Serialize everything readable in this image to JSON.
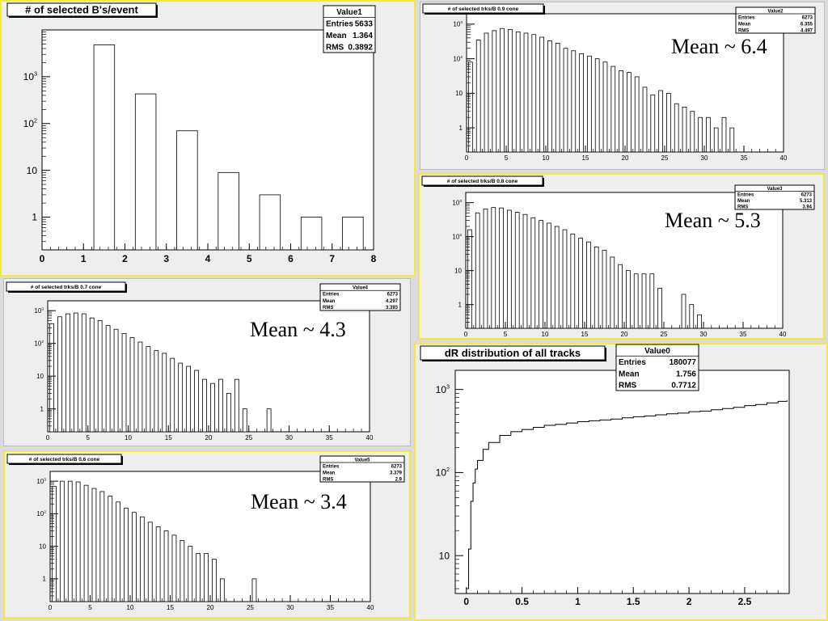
{
  "chart_data": [
    {
      "id": "p1",
      "type": "bar",
      "title": "# of selected B's/event",
      "stats": {
        "name": "Value1",
        "entries": "5633",
        "mean": "1.364",
        "rms": "0.3892"
      },
      "annotation": "",
      "log_y": true,
      "xlim": [
        0,
        8
      ],
      "ylim": [
        0.2,
        10000
      ],
      "bin_width": 1,
      "x_ticks": [
        "0",
        "1",
        "2",
        "3",
        "4",
        "5",
        "6",
        "7",
        "8"
      ],
      "y_ticks": [
        "1",
        "10",
        "10^2",
        "10^3"
      ],
      "x": [
        1,
        2,
        3,
        4,
        5,
        6,
        7
      ],
      "values": [
        4800,
        430,
        70,
        9,
        3,
        1,
        1
      ]
    },
    {
      "id": "p2",
      "type": "bar",
      "title": "# of selected trks/B 0.9 cone",
      "stats": {
        "name": "Value2",
        "entries": "6273",
        "mean": "6.355",
        "rms": "4.497"
      },
      "annotation": "Mean ~ 6.4",
      "log_y": true,
      "xlim": [
        0,
        40
      ],
      "ylim": [
        0.2,
        2000
      ],
      "bin_width": 1,
      "x_ticks": [
        "0",
        "5",
        "10",
        "15",
        "20",
        "25",
        "30",
        "35",
        "40"
      ],
      "y_ticks": [
        "1",
        "10",
        "10^2",
        "10^3"
      ],
      "x": [
        0,
        1,
        2,
        3,
        4,
        5,
        6,
        7,
        8,
        9,
        10,
        11,
        12,
        13,
        14,
        15,
        16,
        17,
        18,
        19,
        20,
        21,
        22,
        23,
        24,
        25,
        26,
        27,
        28,
        29,
        30,
        31,
        32,
        33
      ],
      "values": [
        80,
        350,
        550,
        650,
        750,
        700,
        600,
        550,
        500,
        420,
        330,
        280,
        200,
        170,
        140,
        120,
        100,
        80,
        60,
        45,
        40,
        30,
        15,
        9,
        12,
        10,
        5,
        4,
        3,
        2,
        2,
        1,
        2,
        1
      ]
    },
    {
      "id": "p3",
      "type": "bar",
      "title": "# of selected trks/B 0.8 cone",
      "stats": {
        "name": "Value3",
        "entries": "6273",
        "mean": "5.313",
        "rms": "3.94"
      },
      "annotation": "Mean ~ 5.3",
      "log_y": true,
      "xlim": [
        0,
        40
      ],
      "ylim": [
        0.2,
        2000
      ],
      "bin_width": 1,
      "x_ticks": [
        "0",
        "5",
        "10",
        "15",
        "20",
        "25",
        "30",
        "35",
        "40"
      ],
      "y_ticks": [
        "1",
        "10",
        "10^2",
        "10^3"
      ],
      "x": [
        0,
        1,
        2,
        3,
        4,
        5,
        6,
        7,
        8,
        9,
        10,
        11,
        12,
        13,
        14,
        15,
        16,
        17,
        18,
        19,
        20,
        21,
        22,
        23,
        24,
        25,
        26,
        27,
        28,
        29
      ],
      "values": [
        160,
        500,
        650,
        720,
        700,
        600,
        520,
        450,
        360,
        300,
        250,
        200,
        160,
        120,
        90,
        70,
        50,
        40,
        25,
        15,
        10,
        8,
        8,
        8,
        3,
        0,
        0,
        2,
        1,
        0.5
      ]
    },
    {
      "id": "p4",
      "type": "bar",
      "title": "# of selected trks/B 0.7 cone",
      "stats": {
        "name": "Value4",
        "entries": "6273",
        "mean": "4.297",
        "rms": "3.393"
      },
      "annotation": "Mean ~ 4.3",
      "log_y": true,
      "xlim": [
        0,
        40
      ],
      "ylim": [
        0.2,
        2000
      ],
      "bin_width": 1,
      "x_ticks": [
        "0",
        "5",
        "10",
        "15",
        "20",
        "25",
        "30",
        "35",
        "40"
      ],
      "y_ticks": [
        "1",
        "10",
        "10^2",
        "10^3"
      ],
      "x": [
        0,
        1,
        2,
        3,
        4,
        5,
        6,
        7,
        8,
        9,
        10,
        11,
        12,
        13,
        14,
        15,
        16,
        17,
        18,
        19,
        20,
        21,
        22,
        23,
        24,
        25,
        26,
        27
      ],
      "values": [
        400,
        650,
        800,
        850,
        800,
        600,
        500,
        350,
        270,
        200,
        150,
        110,
        80,
        60,
        50,
        35,
        25,
        20,
        15,
        8,
        6,
        8,
        3,
        8,
        1,
        0,
        0,
        1
      ]
    },
    {
      "id": "p5",
      "type": "bar",
      "title": "# of selected trks/B 0.6 cone",
      "stats": {
        "name": "Value5",
        "entries": "6273",
        "mean": "3.379",
        "rms": "2.9"
      },
      "annotation": "Mean ~ 3.4",
      "log_y": true,
      "xlim": [
        0,
        40
      ],
      "ylim": [
        0.2,
        2000
      ],
      "bin_width": 1,
      "x_ticks": [
        "0",
        "5",
        "10",
        "15",
        "20",
        "25",
        "30",
        "35",
        "40"
      ],
      "y_ticks": [
        "1",
        "10",
        "10^2",
        "10^3"
      ],
      "x": [
        0,
        1,
        2,
        3,
        4,
        5,
        6,
        7,
        8,
        9,
        10,
        11,
        12,
        13,
        14,
        15,
        16,
        17,
        18,
        19,
        20,
        21,
        22,
        23,
        24,
        25
      ],
      "values": [
        700,
        1000,
        1000,
        950,
        750,
        600,
        480,
        350,
        230,
        150,
        110,
        80,
        55,
        40,
        30,
        22,
        15,
        10,
        6,
        6,
        4,
        1,
        0,
        0,
        0,
        1
      ]
    },
    {
      "id": "p6",
      "type": "line",
      "title": "dR distribution of all tracks",
      "stats": {
        "name": "Value0",
        "entries": "180077",
        "mean": "1.756",
        "rms": "0.7712"
      },
      "annotation": "",
      "log_y": true,
      "xlim": [
        -0.1,
        2.9
      ],
      "ylim": [
        3.5,
        1700
      ],
      "x_ticks": [
        "0",
        "0.5",
        "1",
        "1.5",
        "2",
        "2.5"
      ],
      "y_ticks": [
        "10",
        "10^2",
        "10^3"
      ],
      "x": [
        0,
        0.02,
        0.04,
        0.06,
        0.08,
        0.1,
        0.15,
        0.2,
        0.3,
        0.4,
        0.5,
        0.6,
        0.7,
        0.8,
        0.9,
        1.0,
        1.1,
        1.2,
        1.3,
        1.4,
        1.5,
        1.6,
        1.7,
        1.8,
        1.9,
        2.0,
        2.1,
        2.2,
        2.3,
        2.4,
        2.5,
        2.6,
        2.7,
        2.8,
        2.88
      ],
      "values": [
        4,
        12,
        45,
        75,
        110,
        140,
        190,
        230,
        280,
        310,
        330,
        350,
        370,
        380,
        395,
        410,
        420,
        430,
        440,
        455,
        470,
        480,
        495,
        510,
        520,
        540,
        550,
        570,
        590,
        610,
        640,
        660,
        690,
        720,
        740
      ]
    }
  ]
}
